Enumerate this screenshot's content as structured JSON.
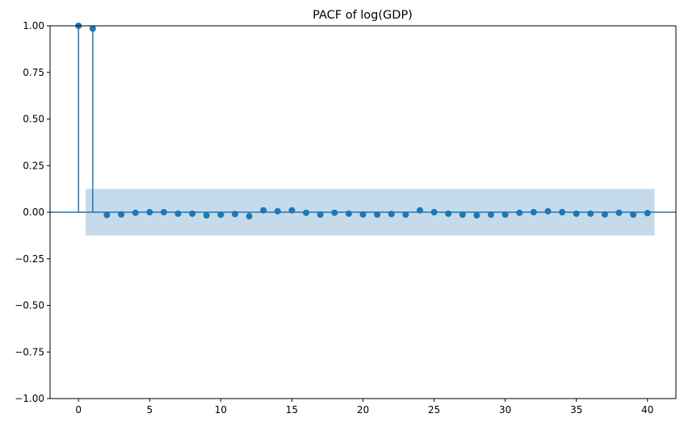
{
  "chart_data": {
    "type": "stem",
    "title": "PACF of log(GDP)",
    "xlabel": "",
    "ylabel": "",
    "xlim": [
      -2,
      42
    ],
    "ylim": [
      -1.0,
      1.0
    ],
    "xticks": [
      0,
      5,
      10,
      15,
      20,
      25,
      30,
      35,
      40
    ],
    "yticks": [
      "1.00",
      "0.75",
      "0.50",
      "0.25",
      "0.00",
      "−0.25",
      "−0.50",
      "−0.75",
      "−1.00"
    ],
    "ytick_values": [
      1.0,
      0.75,
      0.5,
      0.25,
      0.0,
      -0.25,
      -0.5,
      -0.75,
      -1.0
    ],
    "lags": [
      0,
      1,
      2,
      3,
      4,
      5,
      6,
      7,
      8,
      9,
      10,
      11,
      12,
      13,
      14,
      15,
      16,
      17,
      18,
      19,
      20,
      21,
      22,
      23,
      24,
      25,
      26,
      27,
      28,
      29,
      30,
      31,
      32,
      33,
      34,
      35,
      36,
      37,
      38,
      39,
      40
    ],
    "values": [
      1.0,
      0.985,
      -0.015,
      -0.012,
      -0.003,
      0.0,
      0.0,
      -0.008,
      -0.008,
      -0.017,
      -0.013,
      -0.01,
      -0.022,
      0.01,
      0.005,
      0.01,
      -0.003,
      -0.013,
      -0.003,
      -0.008,
      -0.012,
      -0.013,
      -0.01,
      -0.013,
      0.01,
      0.0,
      -0.008,
      -0.013,
      -0.017,
      -0.013,
      -0.013,
      -0.003,
      0.0,
      0.005,
      0.0,
      -0.008,
      -0.008,
      -0.012,
      -0.003,
      -0.013,
      -0.005
    ],
    "confidence_band": {
      "lower": -0.125,
      "upper": 0.125,
      "x_start": 0.5,
      "x_end": 40.5
    },
    "grid": false,
    "colors": {
      "marker": "#1f77b4",
      "stem": "#1f77b4",
      "band": "#c5dbec",
      "zero_line": "#1f77b4"
    }
  }
}
